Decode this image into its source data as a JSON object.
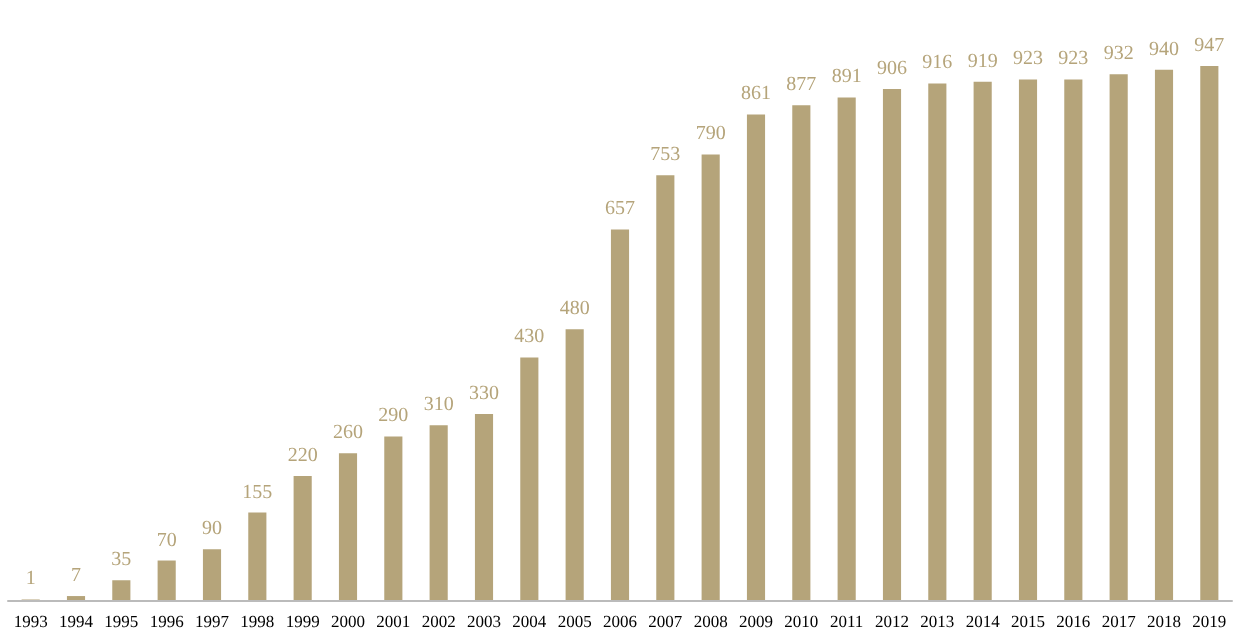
{
  "chart_data": {
    "type": "bar",
    "categories": [
      "1993",
      "1994",
      "1995",
      "1996",
      "1997",
      "1998",
      "1999",
      "2000",
      "2001",
      "2002",
      "2003",
      "2004",
      "2005",
      "2006",
      "2007",
      "2008",
      "2009",
      "2010",
      "2011",
      "2012",
      "2013",
      "2014",
      "2015",
      "2016",
      "2017",
      "2018",
      "2019"
    ],
    "values": [
      1,
      7,
      35,
      70,
      90,
      155,
      220,
      260,
      290,
      310,
      330,
      430,
      480,
      657,
      753,
      790,
      861,
      877,
      891,
      906,
      916,
      919,
      923,
      923,
      932,
      940,
      947
    ],
    "color": "#b5a47a",
    "data_labels": true,
    "tick_labels": "x"
  }
}
